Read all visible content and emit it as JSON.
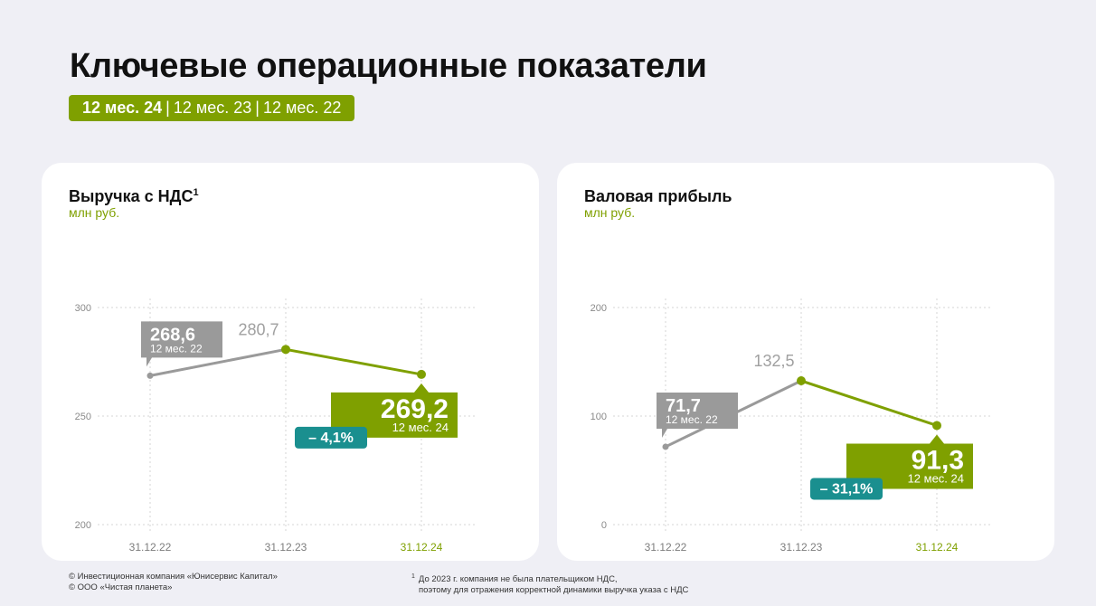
{
  "page": {
    "title": "Ключевые операционные показатели",
    "periods": {
      "active": "12 мес. 24",
      "sep": "|",
      "rest": [
        "12 мес. 23",
        "12 мес. 22"
      ]
    }
  },
  "colors": {
    "accent": "#7fa000",
    "gray": "#9a9a9a",
    "teal": "#1a8f8f",
    "background": "#efeff5",
    "card": "#ffffff"
  },
  "footer": {
    "copyright_1": "© Инвестиционная компания «Юнисервис Капитал»",
    "copyright_2": "© ООО «Чистая планета»",
    "note_marker": "1",
    "note_line_1": "До 2023 г. компания не была плательщиком НДС,",
    "note_line_2": "поэтому для отражения корректной динамики выручка указа с НДС"
  },
  "chart_data": [
    {
      "type": "line",
      "title": "Выручка с НДС",
      "title_sup": "1",
      "unit": "млн руб.",
      "categories": [
        "31.12.22",
        "31.12.23",
        "31.12.24"
      ],
      "values": [
        268.6,
        280.7,
        269.2
      ],
      "value_labels": [
        "268,6",
        "280,7",
        "269,2"
      ],
      "ylim": [
        200,
        300
      ],
      "yticks": [
        "200",
        "250",
        "300"
      ],
      "grid": true,
      "base_callout": {
        "value": "268,6",
        "period": "12 мес. 22"
      },
      "current_callout": {
        "value": "269,2",
        "period": "12 мес. 24"
      },
      "change_badge": "– 4,1%"
    },
    {
      "type": "line",
      "title": "Валовая прибыль",
      "title_sup": "",
      "unit": "млн руб.",
      "categories": [
        "31.12.22",
        "31.12.23",
        "31.12.24"
      ],
      "values": [
        71.7,
        132.5,
        91.3
      ],
      "value_labels": [
        "71,7",
        "132,5",
        "91,3"
      ],
      "ylim": [
        0,
        200
      ],
      "yticks": [
        "0",
        "100",
        "200"
      ],
      "grid": true,
      "base_callout": {
        "value": "71,7",
        "period": "12 мес. 22"
      },
      "current_callout": {
        "value": "91,3",
        "period": "12 мес. 24"
      },
      "change_badge": "– 31,1%"
    }
  ]
}
